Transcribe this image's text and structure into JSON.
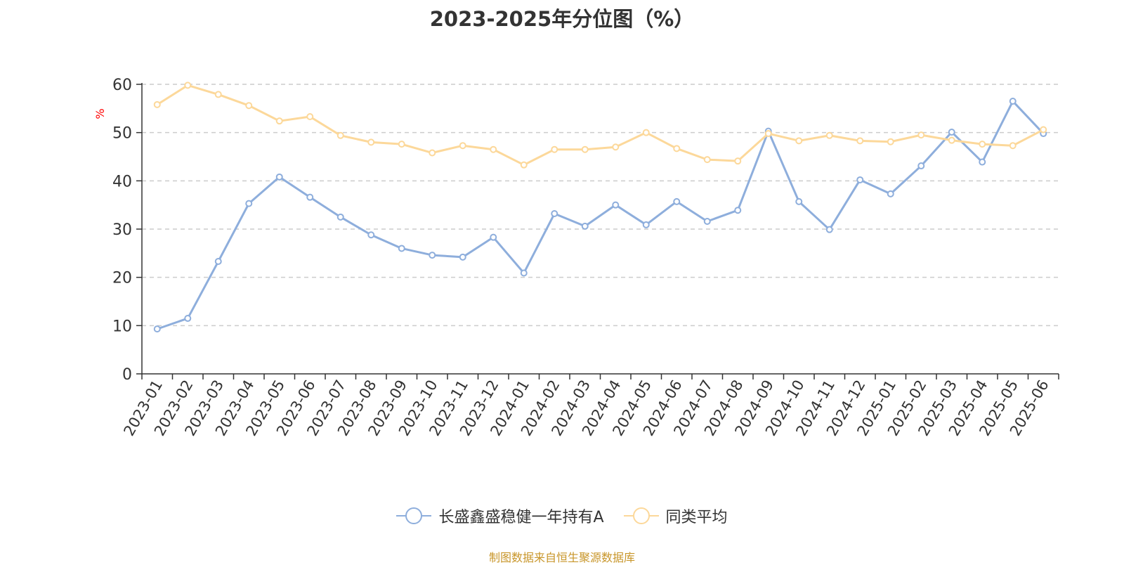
{
  "title": "2023-2025年分位图（%）",
  "source_note": "制图数据来自恒生聚源数据库",
  "colors": {
    "series_a": "#8eaedc",
    "series_b": "#fcd89a",
    "axis": "#333333",
    "grid": "#cccccc",
    "unit_label": "#ff0000",
    "source": "#c8962a"
  },
  "chart_data": {
    "type": "line",
    "title": "2023-2025年分位图（%）",
    "ylabel": "%",
    "xlabel": "",
    "ylim": [
      0,
      60
    ],
    "yticks": [
      0,
      10,
      20,
      30,
      40,
      50,
      60
    ],
    "grid": "horizontal-dashed",
    "legend_position": "bottom",
    "categories": [
      "2023-01",
      "2023-02",
      "2023-03",
      "2023-04",
      "2023-05",
      "2023-06",
      "2023-07",
      "2023-08",
      "2023-09",
      "2023-10",
      "2023-11",
      "2023-12",
      "2024-01",
      "2024-02",
      "2024-03",
      "2024-04",
      "2024-05",
      "2024-06",
      "2024-07",
      "2024-08",
      "2024-09",
      "2024-10",
      "2024-11",
      "2024-12",
      "2025-01",
      "2025-02",
      "2025-03",
      "2025-04",
      "2025-05",
      "2025-06"
    ],
    "series": [
      {
        "name": "长盛鑫盛稳健一年持有A",
        "color": "#8eaedc",
        "values": [
          9.3,
          11.5,
          23.3,
          35.3,
          40.8,
          36.6,
          32.5,
          28.8,
          26.0,
          24.6,
          24.2,
          28.3,
          20.9,
          33.2,
          30.6,
          35.0,
          30.9,
          35.7,
          31.6,
          33.9,
          50.3,
          35.7,
          29.9,
          40.2,
          37.3,
          43.1,
          50.1,
          43.9,
          56.5,
          49.8
        ]
      },
      {
        "name": "同类平均",
        "color": "#fcd89a",
        "values": [
          55.8,
          59.8,
          57.9,
          55.6,
          52.4,
          53.3,
          49.4,
          48.0,
          47.6,
          45.8,
          47.3,
          46.5,
          43.3,
          46.5,
          46.5,
          47.0,
          50.0,
          46.7,
          44.4,
          44.1,
          49.8,
          48.3,
          49.4,
          48.3,
          48.1,
          49.5,
          48.4,
          47.6,
          47.3,
          50.6
        ]
      }
    ]
  }
}
